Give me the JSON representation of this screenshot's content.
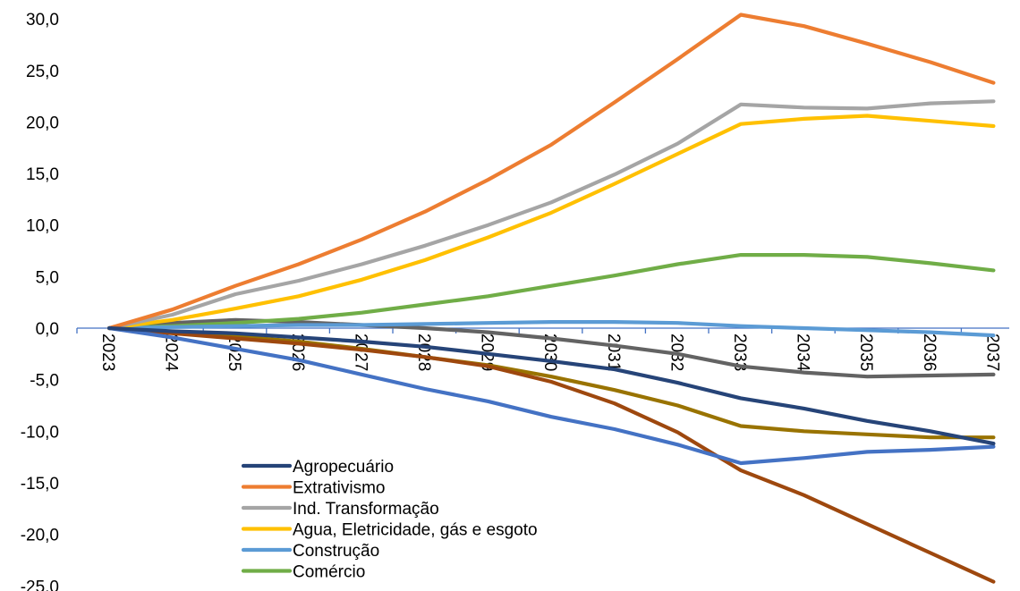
{
  "chart_data": {
    "type": "line",
    "title": "",
    "xlabel": "",
    "ylabel": "",
    "x": [
      "2023",
      "2024",
      "2025",
      "2026",
      "2027",
      "2028",
      "2029",
      "2030",
      "2031",
      "2032",
      "2033",
      "2034",
      "2035",
      "2036",
      "2037"
    ],
    "yticks": [
      "30,0",
      "25,0",
      "20,0",
      "15,0",
      "10,0",
      "5,0",
      "0,0",
      "-5,0",
      "-10,0",
      "-15,0",
      "-20,0",
      "-25,0"
    ],
    "ylim": [
      -25,
      30
    ],
    "grid": false,
    "legend_position": "bottom-left",
    "series": [
      {
        "name": "Agropecuário",
        "color": "#264478",
        "values": [
          0,
          -0.3,
          -0.5,
          -0.9,
          -1.3,
          -1.8,
          -2.5,
          -3.2,
          -4.0,
          -5.3,
          -6.8,
          -7.8,
          -9.0,
          -10.0,
          -11.2
        ]
      },
      {
        "name": "Extrativismo",
        "color": "#ED7D31",
        "values": [
          0,
          1.8,
          4.1,
          6.2,
          8.6,
          11.3,
          14.4,
          17.8,
          21.9,
          26.1,
          30.4,
          29.3,
          27.6,
          25.8,
          23.8
        ]
      },
      {
        "name": "Ind. Transformação",
        "color": "#A5A5A5",
        "values": [
          0,
          1.3,
          3.3,
          4.6,
          6.2,
          8.0,
          10.0,
          12.2,
          14.9,
          17.9,
          21.7,
          21.4,
          21.3,
          21.8,
          22.0
        ]
      },
      {
        "name": "Agua, Eletricidade, gás e esgoto",
        "color": "#FFC000",
        "values": [
          0,
          0.8,
          1.9,
          3.1,
          4.7,
          6.6,
          8.8,
          11.2,
          14.0,
          16.9,
          19.8,
          20.3,
          20.6,
          20.1,
          19.6
        ]
      },
      {
        "name": "Construção",
        "color": "#5B9BD5",
        "values": [
          0,
          0.1,
          0.2,
          0.3,
          0.3,
          0.4,
          0.5,
          0.6,
          0.6,
          0.5,
          0.2,
          0.0,
          -0.2,
          -0.4,
          -0.7
        ]
      },
      {
        "name": "Comércio",
        "color": "#70AD47",
        "values": [
          0,
          0.2,
          0.5,
          0.9,
          1.5,
          2.3,
          3.1,
          4.1,
          5.1,
          6.2,
          7.1,
          7.1,
          6.9,
          6.3,
          5.6
        ]
      },
      {
        "name": "",
        "color": "#4472C4",
        "values": [
          0,
          -0.9,
          -2.0,
          -3.1,
          -4.5,
          -5.9,
          -7.1,
          -8.6,
          -9.8,
          -11.3,
          -13.1,
          -12.6,
          -12.0,
          -11.8,
          -11.5
        ]
      },
      {
        "name": "",
        "color": "#9E480E",
        "values": [
          0,
          -0.5,
          -1.0,
          -1.5,
          -2.1,
          -2.8,
          -3.7,
          -5.2,
          -7.3,
          -10.1,
          -13.8,
          -16.2,
          -19.0,
          -21.8,
          -24.6
        ]
      },
      {
        "name": "",
        "color": "#997300",
        "values": [
          0,
          -0.4,
          -0.8,
          -1.3,
          -2.0,
          -2.8,
          -3.6,
          -4.7,
          -6.0,
          -7.5,
          -9.5,
          -10.0,
          -10.3,
          -10.6,
          -10.6
        ]
      },
      {
        "name": "",
        "color": "#636363",
        "values": [
          0,
          0.5,
          0.8,
          0.6,
          0.3,
          0.0,
          -0.4,
          -1.0,
          -1.7,
          -2.5,
          -3.7,
          -4.3,
          -4.7,
          -4.6,
          -4.5
        ]
      }
    ]
  }
}
